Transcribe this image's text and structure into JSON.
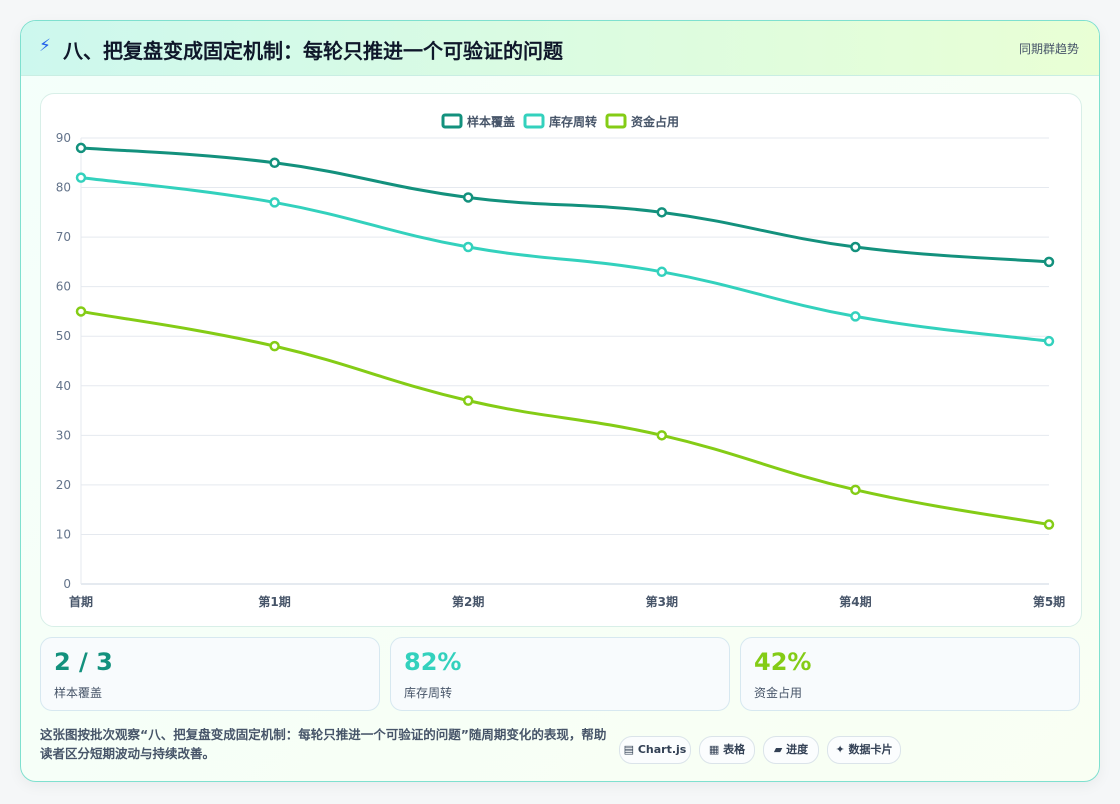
{
  "header": {
    "icon": "lightning-icon",
    "title": "八、把复盘变成固定机制：每轮只推进一个可验证的问题",
    "badge": "同期群趋势"
  },
  "chart_data": {
    "type": "line",
    "categories": [
      "首期",
      "第1期",
      "第2期",
      "第3期",
      "第4期",
      "第5期"
    ],
    "series": [
      {
        "name": "样本覆盖",
        "color": "#13917d",
        "values": [
          88,
          85,
          78,
          75,
          68,
          65
        ]
      },
      {
        "name": "库存周转",
        "color": "#33d1bd",
        "values": [
          82,
          77,
          68,
          63,
          54,
          49
        ]
      },
      {
        "name": "资金占用",
        "color": "#84cc16",
        "values": [
          55,
          48,
          37,
          30,
          19,
          12
        ]
      }
    ],
    "ylim": [
      0,
      90
    ],
    "yticks": [
      0,
      10,
      20,
      30,
      40,
      50,
      60,
      70,
      80,
      90
    ],
    "grid": true,
    "legend_position": "top-center"
  },
  "kpis": [
    {
      "value": "2 / 3",
      "label": "样本覆盖",
      "color": "#13917d"
    },
    {
      "value": "82%",
      "label": "库存周转",
      "color": "#33d1bd"
    },
    {
      "value": "42%",
      "label": "资金占用",
      "color": "#84cc16"
    }
  ],
  "footer": {
    "note": "这张图按批次观察“八、把复盘变成固定机制：每轮只推进一个可验证的问题”随周期变化的表现，帮助读者区分短期波动与持续改善。",
    "chips": [
      "▤ Chart.js",
      "▦ 表格",
      "▰ 进度",
      "✦ 数据卡片"
    ]
  }
}
